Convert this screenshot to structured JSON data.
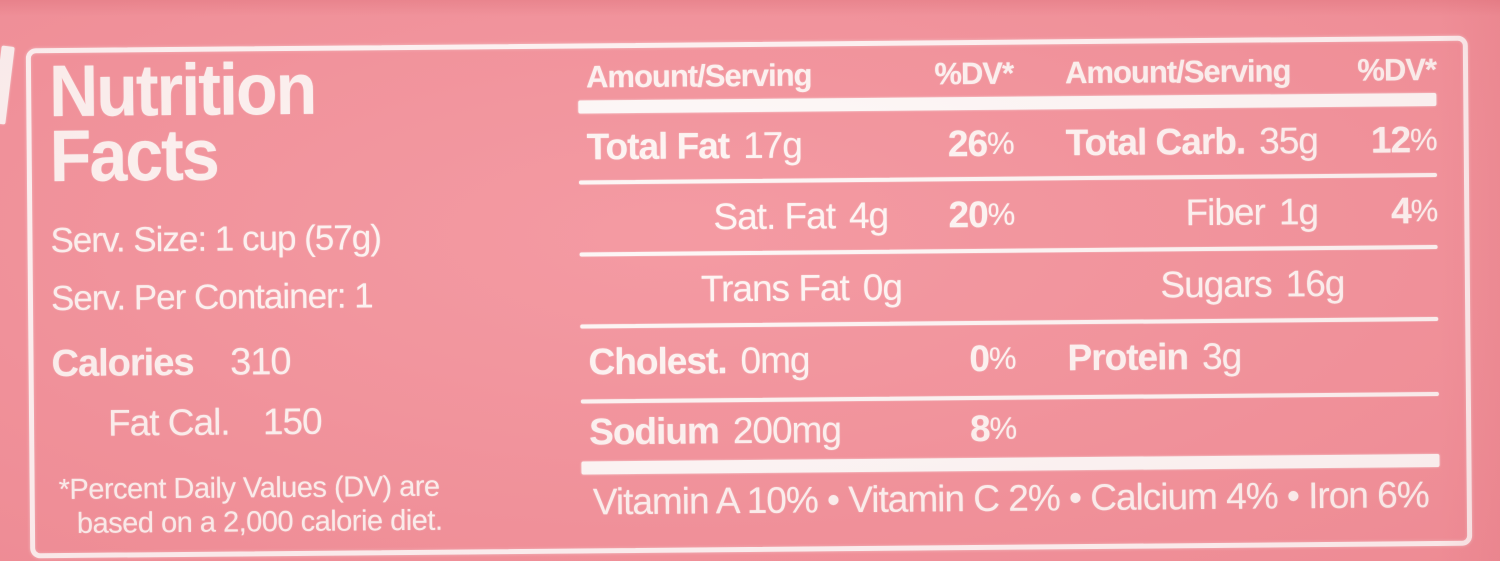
{
  "colors": {
    "background_pink": "#f3929b",
    "text_white": "#fef6f4",
    "rule_white": "#fdf7f6"
  },
  "left_panel": {
    "title_line1": "Nutrition",
    "title_line2": "Facts",
    "serv_size": "Serv. Size: 1 cup (57g)",
    "serv_per_container": "Serv. Per Container: 1",
    "calories_label": "Calories",
    "calories_value": "310",
    "fat_cal_label": "Fat Cal.",
    "fat_cal_value": "150",
    "footnote_line1": "*Percent Daily Values (DV) are",
    "footnote_line2": "based on a 2,000 calorie diet."
  },
  "table": {
    "left_column": {
      "header_amount": "Amount/Serving",
      "header_dv": "%DV*",
      "rows": [
        {
          "name": "Total Fat",
          "amount": "17g",
          "dv_num": "26",
          "dv_sign": "%"
        },
        {
          "name": "Sat. Fat",
          "amount": "4g",
          "dv_num": "20",
          "dv_sign": "%"
        },
        {
          "name": "Trans Fat",
          "amount": "0g",
          "dv_num": "",
          "dv_sign": ""
        },
        {
          "name": "Cholest.",
          "amount": "0mg",
          "dv_num": "0",
          "dv_sign": "%"
        },
        {
          "name": "Sodium",
          "amount": "200mg",
          "dv_num": "8",
          "dv_sign": "%"
        }
      ]
    },
    "right_column": {
      "header_amount": "Amount/Serving",
      "header_dv": "%DV*",
      "rows": [
        {
          "name": "Total Carb.",
          "amount": "35g",
          "dv_num": "12",
          "dv_sign": "%"
        },
        {
          "name": "Fiber",
          "amount": "1g",
          "dv_num": "4",
          "dv_sign": "%"
        },
        {
          "name": "Sugars",
          "amount": "16g",
          "dv_num": "",
          "dv_sign": ""
        },
        {
          "name": "Protein",
          "amount": "3g",
          "dv_num": "",
          "dv_sign": ""
        }
      ]
    },
    "vitamins_line": "Vitamin A 10% • Vitamin C 2% • Calcium 4% • Iron 6%"
  }
}
